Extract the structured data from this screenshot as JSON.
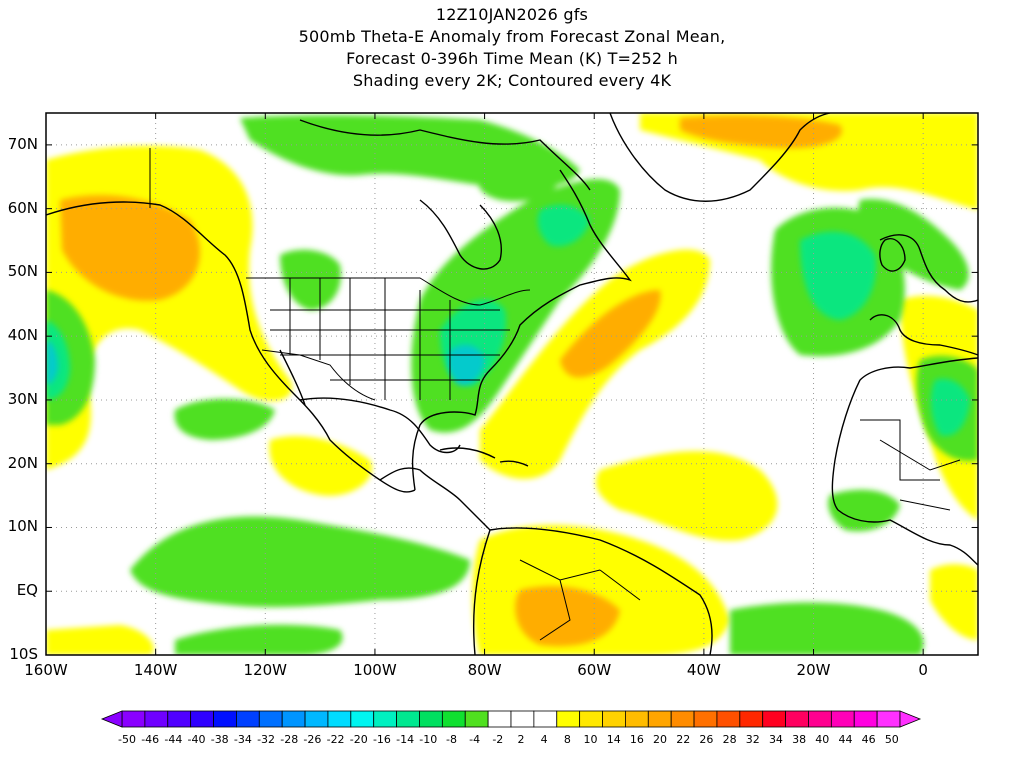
{
  "title": {
    "line1": "12Z10JAN2026 gfs",
    "line2": "500mb Theta-E Anomaly from Forecast Zonal Mean,",
    "line3": "Forecast 0-396h Time Mean (K) T=252 h",
    "line4": "Shading every 2K; Contoured every 4K"
  },
  "map": {
    "lon_range": [
      -160,
      10
    ],
    "lat_range": [
      -10,
      75
    ],
    "lat_labels": [
      "70N",
      "60N",
      "50N",
      "40N",
      "30N",
      "20N",
      "10N",
      "EQ",
      "10S"
    ],
    "lat_values": [
      70,
      60,
      50,
      40,
      30,
      20,
      10,
      0,
      -10
    ],
    "lon_labels": [
      "160W",
      "140W",
      "120W",
      "100W",
      "80W",
      "60W",
      "40W",
      "20W",
      "0"
    ],
    "lon_values": [
      -160,
      -140,
      -120,
      -100,
      -80,
      -60,
      -40,
      -20,
      0
    ],
    "grid": "dotted"
  },
  "colorbar": {
    "labels": [
      "-50",
      "-46",
      "-44",
      "-40",
      "-38",
      "-34",
      "-32",
      "-28",
      "-26",
      "-22",
      "-20",
      "-16",
      "-14",
      "-10",
      "-8",
      "-4",
      "-2",
      "2",
      "4",
      "8",
      "10",
      "14",
      "16",
      "20",
      "22",
      "26",
      "28",
      "32",
      "34",
      "38",
      "40",
      "44",
      "46",
      "50"
    ],
    "colors": [
      "#8a00ff",
      "#6f00ff",
      "#5000ff",
      "#2f00ff",
      "#0010ff",
      "#0040ff",
      "#0070ff",
      "#0095ff",
      "#00b8ff",
      "#00dcff",
      "#00f5f0",
      "#00f0c0",
      "#00e890",
      "#00e060",
      "#10e030",
      "#50e020",
      "#ffffff",
      "#ffffff",
      "#ffffff",
      "#ffff00",
      "#ffe800",
      "#ffd200",
      "#ffbc00",
      "#ffa500",
      "#ff8c00",
      "#ff7000",
      "#ff5000",
      "#ff2800",
      "#ff0020",
      "#ff0060",
      "#ff0090",
      "#ff00b8",
      "#ff00e0",
      "#ff30ff"
    ]
  }
}
